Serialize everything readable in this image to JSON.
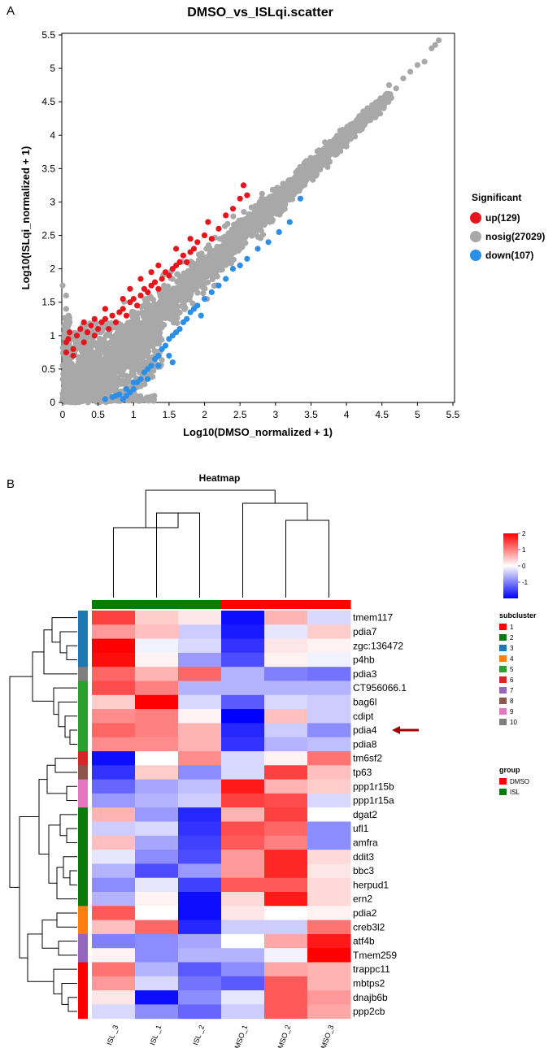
{
  "panel_a_label": "A",
  "panel_b_label": "B",
  "chart_data": [
    {
      "type": "scatter",
      "title": "DMSO_vs_ISLqi.scatter",
      "xlabel": "Log10(DMSO_normalized + 1)",
      "ylabel": "Log10(ISLqi_normalized + 1)",
      "xlim": [
        0,
        5.5
      ],
      "ylim": [
        0,
        5.5
      ],
      "xticks": [
        "0",
        "0.5",
        "1",
        "1.5",
        "2",
        "2.5",
        "3",
        "3.5",
        "4",
        "4.5",
        "5",
        "5.5"
      ],
      "yticks": [
        "0",
        "0.5",
        "1",
        "1.5",
        "2",
        "2.5",
        "3",
        "3.5",
        "4",
        "4.5",
        "5",
        "5.5"
      ],
      "legend_title": "Significant",
      "series": [
        {
          "name": "up(129)",
          "color": "#e8141c",
          "points": [
            [
              0.05,
              0.75
            ],
            [
              0.05,
              0.9
            ],
            [
              0.08,
              0.95
            ],
            [
              0.1,
              1.05
            ],
            [
              0.15,
              0.8
            ],
            [
              0.2,
              1.0
            ],
            [
              0.25,
              1.1
            ],
            [
              0.3,
              0.9
            ],
            [
              0.35,
              1.05
            ],
            [
              0.4,
              1.15
            ],
            [
              0.45,
              1.0
            ],
            [
              0.5,
              1.1
            ],
            [
              0.55,
              1.2
            ],
            [
              0.6,
              1.25
            ],
            [
              0.65,
              1.1
            ],
            [
              0.7,
              1.3
            ],
            [
              0.75,
              1.2
            ],
            [
              0.8,
              1.35
            ],
            [
              0.85,
              1.4
            ],
            [
              0.9,
              1.3
            ],
            [
              0.95,
              1.5
            ],
            [
              1.0,
              1.55
            ],
            [
              1.05,
              1.45
            ],
            [
              1.1,
              1.6
            ],
            [
              1.15,
              1.7
            ],
            [
              1.2,
              1.65
            ],
            [
              1.25,
              1.75
            ],
            [
              1.3,
              1.8
            ],
            [
              1.35,
              1.7
            ],
            [
              1.4,
              1.85
            ],
            [
              1.45,
              1.95
            ],
            [
              1.5,
              1.9
            ],
            [
              1.55,
              2.0
            ],
            [
              1.6,
              2.05
            ],
            [
              1.65,
              2.1
            ],
            [
              1.7,
              2.2
            ],
            [
              1.75,
              2.1
            ],
            [
              1.8,
              2.25
            ],
            [
              1.85,
              2.3
            ],
            [
              1.9,
              2.4
            ],
            [
              2.0,
              2.5
            ],
            [
              2.1,
              2.45
            ],
            [
              2.2,
              2.6
            ],
            [
              2.3,
              2.8
            ],
            [
              2.4,
              2.9
            ],
            [
              2.5,
              3.05
            ],
            [
              2.6,
              3.1
            ],
            [
              2.55,
              3.25
            ],
            [
              0.95,
              1.7
            ],
            [
              1.1,
              1.85
            ],
            [
              0.85,
              1.55
            ],
            [
              1.25,
              1.95
            ],
            [
              1.35,
              2.05
            ],
            [
              1.6,
              2.3
            ],
            [
              1.8,
              2.45
            ],
            [
              0.6,
              1.4
            ],
            [
              0.3,
              1.2
            ],
            [
              0.15,
              0.7
            ],
            [
              0.45,
              1.25
            ],
            [
              2.05,
              2.7
            ]
          ]
        },
        {
          "name": "nosig(27029)",
          "color": "#a8a8a8",
          "points": []
        },
        {
          "name": "down(107)",
          "color": "#2b8fe8",
          "points": [
            [
              0.6,
              0.05
            ],
            [
              0.7,
              0.08
            ],
            [
              0.75,
              0.1
            ],
            [
              0.8,
              0.12
            ],
            [
              0.85,
              0.05
            ],
            [
              0.9,
              0.1
            ],
            [
              0.95,
              0.15
            ],
            [
              1.0,
              0.2
            ],
            [
              1.05,
              0.3
            ],
            [
              1.1,
              0.35
            ],
            [
              1.15,
              0.45
            ],
            [
              1.2,
              0.5
            ],
            [
              1.25,
              0.55
            ],
            [
              1.3,
              0.65
            ],
            [
              1.35,
              0.7
            ],
            [
              1.4,
              0.8
            ],
            [
              1.45,
              0.85
            ],
            [
              1.5,
              0.95
            ],
            [
              1.55,
              1.0
            ],
            [
              1.6,
              1.05
            ],
            [
              1.65,
              1.1
            ],
            [
              1.7,
              1.2
            ],
            [
              1.75,
              1.25
            ],
            [
              1.8,
              1.35
            ],
            [
              1.85,
              1.4
            ],
            [
              1.9,
              1.45
            ],
            [
              2.0,
              1.55
            ],
            [
              2.1,
              1.65
            ],
            [
              2.2,
              1.75
            ],
            [
              2.3,
              1.85
            ],
            [
              2.4,
              2.0
            ],
            [
              2.5,
              2.05
            ],
            [
              2.6,
              2.15
            ],
            [
              2.75,
              2.3
            ],
            [
              2.9,
              2.4
            ],
            [
              3.05,
              2.55
            ],
            [
              3.2,
              2.7
            ],
            [
              3.35,
              3.05
            ],
            [
              1.5,
              0.7
            ],
            [
              1.55,
              0.6
            ],
            [
              1.0,
              0.3
            ],
            [
              1.2,
              0.35
            ],
            [
              0.9,
              0.2
            ],
            [
              1.35,
              0.55
            ],
            [
              1.95,
              1.3
            ]
          ]
        }
      ]
    },
    {
      "type": "heatmap",
      "title": "Heatmap",
      "columns": [
        "ISL_3",
        "ISL_1",
        "ISL_2",
        "DMSO_1",
        "DMSO_2",
        "DMSO_3"
      ],
      "column_labels": [
        "ISL _3",
        "ISL _1",
        "ISL _2",
        "DMSO_1",
        "DMSO_2",
        "DMSO_3"
      ],
      "column_groups": [
        "ISL",
        "ISL",
        "ISL",
        "DMSO",
        "DMSO",
        "DMSO"
      ],
      "rows": [
        "tmem117",
        "pdia7",
        "zgc:136472",
        "p4hb",
        "pdia3",
        "CT956066.1",
        "bag6l",
        "cdipt",
        "pdia4",
        "pdia8",
        "tm6sf2",
        "tp63",
        "ppp1r15b",
        "ppp1r15a",
        "dgat2",
        "ufl1",
        "amfra",
        "ddit3",
        "bbc3",
        "herpud1",
        "ern2",
        "pdia2",
        "creb3l2",
        "atf4b",
        "Tmem259",
        "trappc11",
        "mbtps2",
        "dnajb6b",
        "ppp2cb"
      ],
      "row_subcluster": [
        3,
        3,
        3,
        3,
        10,
        5,
        5,
        5,
        5,
        5,
        6,
        8,
        9,
        9,
        2,
        2,
        2,
        2,
        2,
        2,
        2,
        4,
        4,
        7,
        7,
        1,
        1,
        1,
        1
      ],
      "values": [
        [
          1.5,
          0.4,
          0.2,
          -1.9,
          0.6,
          -0.3
        ],
        [
          0.8,
          0.5,
          -0.4,
          -1.8,
          -0.2,
          0.4
        ],
        [
          2.0,
          -0.1,
          -0.3,
          -1.6,
          0.2,
          0.1
        ],
        [
          1.9,
          0.1,
          -0.8,
          -1.4,
          0.1,
          -0.1
        ],
        [
          1.2,
          0.6,
          1.2,
          -0.6,
          -1.0,
          -1.1
        ],
        [
          1.4,
          1.0,
          -0.6,
          -0.6,
          -0.6,
          -0.6
        ],
        [
          0.4,
          2.0,
          -0.3,
          -1.3,
          -0.3,
          -0.4
        ],
        [
          0.9,
          1.0,
          0.1,
          -2.0,
          0.5,
          -0.4
        ],
        [
          1.2,
          1.0,
          0.6,
          -1.7,
          -0.4,
          -0.9
        ],
        [
          0.9,
          0.9,
          0.6,
          -1.6,
          -0.6,
          -0.5
        ],
        [
          -1.9,
          0.0,
          0.9,
          -0.3,
          0.1,
          1.1
        ],
        [
          -1.6,
          0.4,
          -0.9,
          -0.3,
          1.5,
          0.5
        ],
        [
          -1.2,
          -0.7,
          -0.5,
          1.8,
          0.6,
          0.4
        ],
        [
          -0.8,
          -0.6,
          -0.4,
          1.5,
          1.4,
          -0.3
        ],
        [
          0.6,
          -0.8,
          -1.7,
          0.6,
          1.5,
          0.0
        ],
        [
          -0.4,
          -0.3,
          -1.6,
          1.4,
          1.2,
          -0.9
        ],
        [
          0.5,
          -0.7,
          -1.5,
          1.3,
          1.0,
          -0.9
        ],
        [
          -0.2,
          -0.9,
          -1.4,
          0.8,
          1.7,
          0.3
        ],
        [
          -0.6,
          -1.4,
          -0.8,
          0.8,
          1.7,
          0.2
        ],
        [
          -0.9,
          -0.2,
          -1.5,
          1.3,
          1.3,
          0.3
        ],
        [
          -0.6,
          0.1,
          -1.9,
          0.3,
          1.8,
          0.3
        ],
        [
          1.3,
          0.0,
          -1.9,
          0.2,
          0.0,
          0.1
        ],
        [
          0.5,
          1.2,
          -1.7,
          -0.4,
          -0.4,
          1.1
        ],
        [
          -1.0,
          -0.9,
          -0.7,
          0.0,
          0.7,
          1.8
        ],
        [
          0.1,
          -0.9,
          -0.6,
          -0.6,
          -0.1,
          2.0
        ],
        [
          1.1,
          -0.6,
          -1.3,
          -0.9,
          0.7,
          0.6
        ],
        [
          0.8,
          -0.3,
          -1.1,
          -1.3,
          1.3,
          0.6
        ],
        [
          0.2,
          -1.9,
          -0.9,
          -0.2,
          1.3,
          0.8
        ],
        [
          -0.3,
          -0.9,
          -1.2,
          -0.4,
          1.3,
          0.7
        ]
      ],
      "color_scale": {
        "min": -2,
        "max": 2,
        "low": "#0000ff",
        "mid": "#ffffff",
        "high": "#ff0000"
      },
      "color_ticks": [
        "2",
        "1",
        "0",
        "-1"
      ],
      "highlight_row": "pdia4",
      "subcluster_legend_title": "subcluster",
      "subclusters": [
        {
          "label": "1",
          "color": "#ff0000"
        },
        {
          "label": "2",
          "color": "#0a7a0a"
        },
        {
          "label": "3",
          "color": "#1f77b4"
        },
        {
          "label": "4",
          "color": "#ff7f0e"
        },
        {
          "label": "5",
          "color": "#2ca02c"
        },
        {
          "label": "6",
          "color": "#d62728"
        },
        {
          "label": "7",
          "color": "#9467bd"
        },
        {
          "label": "8",
          "color": "#8c564b"
        },
        {
          "label": "9",
          "color": "#e377c2"
        },
        {
          "label": "10",
          "color": "#7f7f7f"
        }
      ],
      "group_legend_title": "group",
      "groups": [
        {
          "label": "DMSO",
          "color": "#ff0000"
        },
        {
          "label": "ISL",
          "color": "#0a7a0a"
        }
      ]
    }
  ]
}
